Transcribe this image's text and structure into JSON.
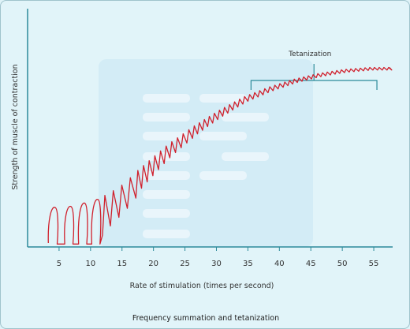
{
  "chart_data": {
    "type": "line",
    "title": "",
    "xlabel": "Rate of stimulation (times per second)",
    "ylabel": "Strength of muscle of contraction",
    "xlim": [
      0,
      58
    ],
    "ylim": [
      0,
      100
    ],
    "xticks": [
      5,
      10,
      15,
      20,
      25,
      30,
      35,
      40,
      45,
      50,
      55
    ],
    "grid": false,
    "legend": "none",
    "series": [
      {
        "envelope_x": [
          3.5,
          6,
          10,
          14,
          18,
          22,
          26,
          30,
          34,
          38,
          42,
          46,
          50,
          54,
          57.5
        ],
        "envelope_y": [
          20,
          20,
          23,
          30,
          41,
          52,
          61,
          69,
          76,
          81,
          85,
          88,
          90,
          91,
          91
        ]
      }
    ],
    "annotations": [
      {
        "text": "Tetanization",
        "x_start": 35.5,
        "x_end": 55.5
      }
    ],
    "caption": "Frequency summation and tetanization",
    "line_color": "#d0202c",
    "axis_color": "#2c8a9a"
  }
}
